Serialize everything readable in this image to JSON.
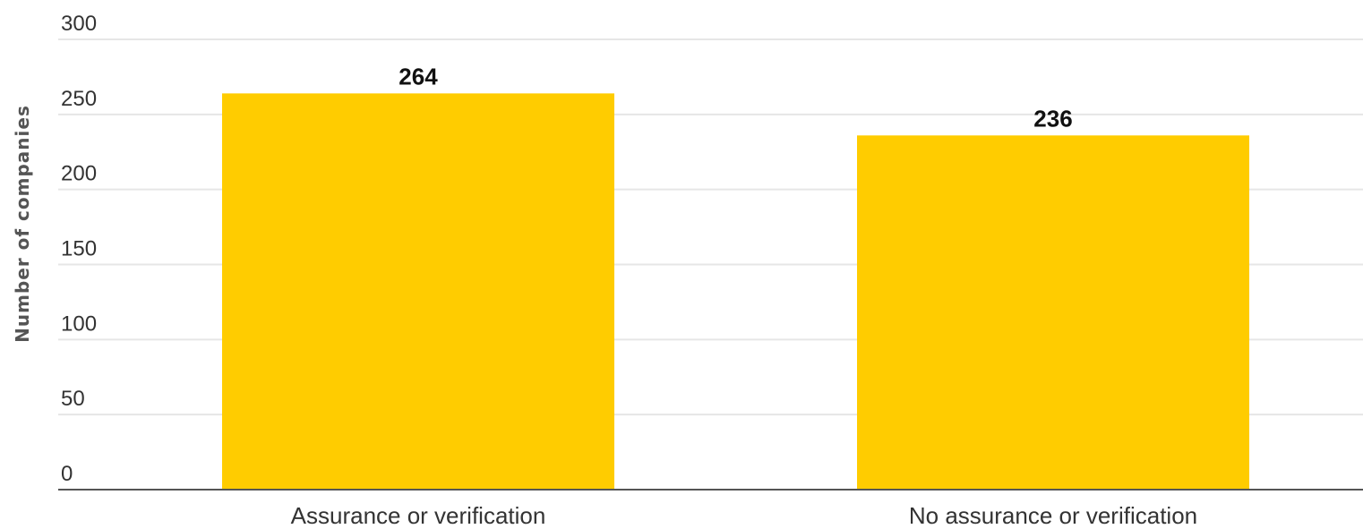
{
  "chart_data": {
    "type": "bar",
    "title": "",
    "xlabel": "",
    "ylabel": "Number of companies",
    "categories": [
      "Assurance or verification",
      "No assurance or verification"
    ],
    "values": [
      264,
      236
    ],
    "ylim": [
      0,
      300
    ],
    "yticks": [
      0,
      50,
      100,
      150,
      200,
      250,
      300
    ],
    "grid": true,
    "legend": "none",
    "colors": {
      "bar": "#FFCC00",
      "grid": "#e6e6e6",
      "axis": "#555555"
    }
  }
}
